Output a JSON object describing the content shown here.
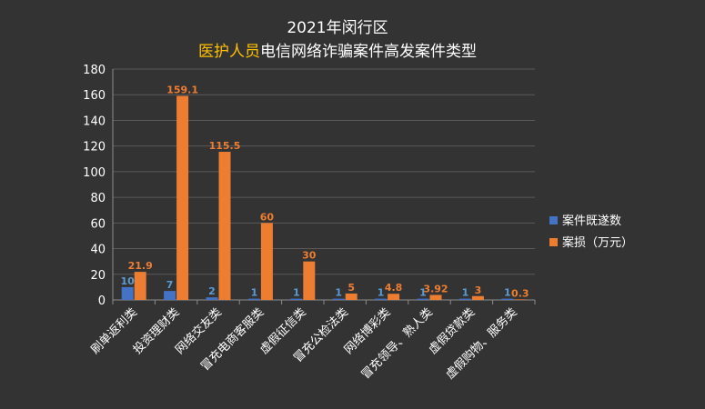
{
  "chart_data": {
    "type": "bar",
    "title_line1": "2021年闵行区",
    "title_highlight": "医护人员",
    "title_rest": "电信网络诈骗案件高发案件类型",
    "categories": [
      "刷单返利类",
      "投资理财类",
      "网络交友类",
      "冒充电商客服类",
      "虚假征信类",
      "冒充公检法类",
      "网络博彩类",
      "冒充领导、熟人类",
      "虚假贷款类",
      "虚假购物、服务类"
    ],
    "series": [
      {
        "name": "案件既遂数",
        "values": [
          10,
          7,
          2,
          1,
          1,
          1,
          1,
          1,
          1,
          1
        ],
        "labels": [
          "10",
          "7",
          "2",
          "1",
          "1",
          "1",
          "1",
          "1",
          "1",
          "1"
        ],
        "color": "#4472C4",
        "label_color": "#5B9BD5"
      },
      {
        "name": "案损（万元）",
        "values": [
          21.9,
          159.1,
          115.5,
          60,
          30,
          5,
          4.8,
          3.92,
          3,
          0.3
        ],
        "labels": [
          "21.9",
          "159.1",
          "115.5",
          "60",
          "30",
          "5",
          "4.8",
          "3.92",
          "3",
          "0.3"
        ],
        "color": "#ED7D31",
        "label_color": "#ED7D31"
      }
    ],
    "yticks": [
      "0",
      "20",
      "40",
      "60",
      "80",
      "100",
      "120",
      "140",
      "160",
      "180"
    ],
    "ylim": [
      0,
      180
    ],
    "grid": true,
    "legend_position": "right",
    "colors": {
      "background": "#333333",
      "grid": "#5a5a5a",
      "axis": "#8c8c8c",
      "text": "#ffffff",
      "highlight": "#FFC000"
    }
  }
}
